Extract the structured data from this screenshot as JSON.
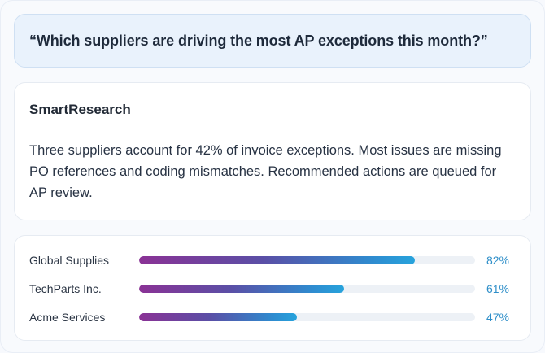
{
  "query": {
    "text": "“Which suppliers are driving the most AP exceptions this month?”"
  },
  "answer": {
    "title": "SmartResearch",
    "body": "Three suppliers account for 42% of invoice exceptions. Most issues are missing PO references and coding mismatches. Recommended actions are queued for AP review."
  },
  "suppliers": [
    {
      "name": "Global Supplies",
      "percent": 82,
      "label": "82%"
    },
    {
      "name": "TechParts Inc.",
      "percent": 61,
      "label": "61%"
    },
    {
      "name": "Acme Services",
      "percent": 47,
      "label": "47%"
    }
  ],
  "colors": {
    "bar_start": "#8a3295",
    "bar_end": "#27a3dc",
    "value_text": "#2f8fc9",
    "query_background": "#e9f2fc"
  }
}
